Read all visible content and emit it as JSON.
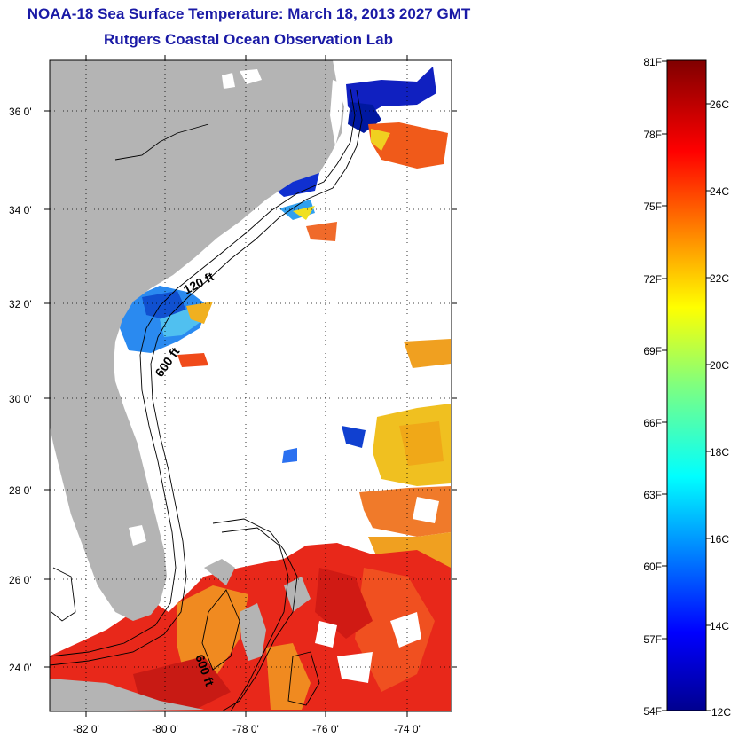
{
  "title": "NOAA-18 Sea Surface Temperature:  March 18, 2013 2027 GMT",
  "subtitle": "Rutgers Coastal Ocean Observation Lab",
  "lat_labels": [
    "36 0'",
    "34 0'",
    "32 0'",
    "30 0'",
    "28 0'",
    "26 0'",
    "24 0'"
  ],
  "lon_labels": [
    "-82 0'",
    "-80 0'",
    "-78 0'",
    "-76 0'",
    "-74 0'"
  ],
  "contour_labels": [
    "120 ft",
    "600 ft",
    "600 ft"
  ],
  "colorbar": {
    "fahrenheit": [
      "81F",
      "78F",
      "75F",
      "72F",
      "69F",
      "66F",
      "63F",
      "60F",
      "57F",
      "54F"
    ],
    "celsius": [
      "26C",
      "24C",
      "22C",
      "20C",
      "18C",
      "16C",
      "14C",
      "12C"
    ]
  },
  "colors": {
    "land": "#b4b4b4",
    "title": "#1a1aa6"
  }
}
